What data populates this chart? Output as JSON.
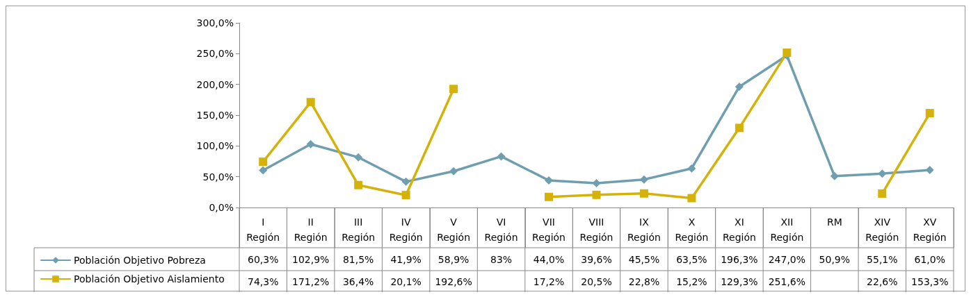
{
  "chart_data": {
    "type": "line",
    "categories": [
      "I Región",
      "II Región",
      "III Región",
      "IV Región",
      "V Región",
      "VI Región",
      "VII Región",
      "VIII Región",
      "IX Región",
      "X Región",
      "XI Región",
      "XII Región",
      "RM",
      "XIV Región",
      "XV Región"
    ],
    "series": [
      {
        "name": "Población Objetivo Pobreza",
        "color": "#6f9fae",
        "marker": "diamond",
        "values": [
          60.3,
          102.9,
          81.5,
          41.9,
          58.9,
          83,
          44.0,
          39.6,
          45.5,
          63.5,
          196.3,
          247.0,
          50.9,
          55.1,
          61.0
        ],
        "value_labels": [
          "60,3%",
          "102,9%",
          "81,5%",
          "41,9%",
          "58,9%",
          "83%",
          "44,0%",
          "39,6%",
          "45,5%",
          "63,5%",
          "196,3%",
          "247,0%",
          "50,9%",
          "55,1%",
          "61,0%"
        ]
      },
      {
        "name": "Población Objetivo Aislamiento",
        "color": "#d4b20a",
        "marker": "square",
        "values": [
          74.3,
          171.2,
          36.4,
          20.1,
          192.6,
          null,
          17.2,
          20.5,
          22.8,
          15.2,
          129.3,
          251.6,
          null,
          22.6,
          153.3
        ],
        "value_labels": [
          "74,3%",
          "171,2%",
          "36,4%",
          "20,1%",
          "192,6%",
          null,
          "17,2%",
          "20,5%",
          "22,8%",
          "15,2%",
          "129,3%",
          "251,6%",
          null,
          "22,6%",
          "153,3%"
        ]
      }
    ],
    "ylim": [
      0,
      300
    ],
    "yticks": [
      {
        "value": 0,
        "label": "0,0%"
      },
      {
        "value": 50,
        "label": "50,0%"
      },
      {
        "value": 100,
        "label": "100,0%"
      },
      {
        "value": 150,
        "label": "150,0%"
      },
      {
        "value": 200,
        "label": "200,0%"
      },
      {
        "value": 250,
        "label": "250,0%"
      },
      {
        "value": 300,
        "label": "300,0%"
      }
    ],
    "grid": false,
    "legend": "bottom left",
    "line_style": "solid"
  }
}
